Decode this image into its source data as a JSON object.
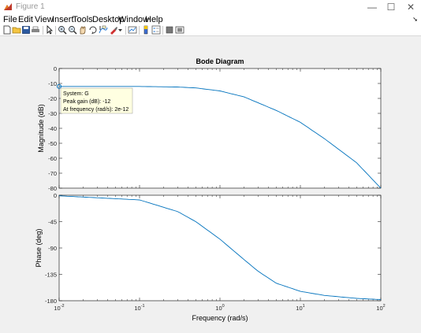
{
  "window": {
    "title": "Figure 1",
    "minimize": "—",
    "maximize": "☐",
    "close": "✕"
  },
  "menu": [
    "File",
    "Edit",
    "View",
    "Insert",
    "Tools",
    "Desktop",
    "Window",
    "Help"
  ],
  "toolbar": {
    "icons": [
      "new-figure-icon",
      "open-file-icon",
      "save-icon",
      "print-icon",
      "edit-plot-arrow-icon",
      "zoom-in-icon",
      "zoom-out-icon",
      "pan-icon",
      "rotate-3d-icon",
      "data-cursor-icon",
      "brush-icon",
      "brush-dropdown-icon",
      "link-plot-icon",
      "insert-colorbar-icon",
      "insert-legend-icon",
      "hide-plot-tools-icon",
      "show-plot-tools-icon"
    ]
  },
  "chart_data": {
    "type": "line",
    "title": "Bode Diagram",
    "xlabel": "Frequency  (rad/s)",
    "xscale": "log",
    "xlim": [
      0.01,
      100
    ],
    "xticks": [
      "10-2",
      "10-1",
      "100",
      "101",
      "102"
    ],
    "line_color": "#0072bd",
    "panels": [
      {
        "name": "magnitude",
        "ylabel": "Magnitude (dB)",
        "ylim": [
          -80,
          0
        ],
        "yticks": [
          0,
          -10,
          -20,
          -30,
          -40,
          -50,
          -60,
          -70,
          -80
        ],
        "x": [
          0.01,
          0.1,
          0.3,
          0.5,
          1,
          2,
          3,
          5,
          10,
          20,
          50,
          100
        ],
        "y": [
          -12,
          -12,
          -12.4,
          -13,
          -15,
          -19,
          -23,
          -28,
          -36,
          -47,
          -63,
          -80
        ]
      },
      {
        "name": "phase",
        "ylabel": "Phase (deg)",
        "ylim": [
          -180,
          0
        ],
        "yticks": [
          0,
          -45,
          -90,
          -135,
          -180
        ],
        "x": [
          0.01,
          0.1,
          0.3,
          0.5,
          1,
          2,
          3,
          5,
          10,
          20,
          50,
          100
        ],
        "y": [
          -1,
          -8,
          -28,
          -45,
          -75,
          -110,
          -130,
          -150,
          -164,
          -171,
          -176,
          -178
        ]
      }
    ],
    "grid": false,
    "datatip": {
      "x": 0.01,
      "y": -12,
      "lines": [
        "System: G",
        "Peak gain (dB): -12",
        "At frequency (rad/s): 2e-12"
      ]
    }
  }
}
